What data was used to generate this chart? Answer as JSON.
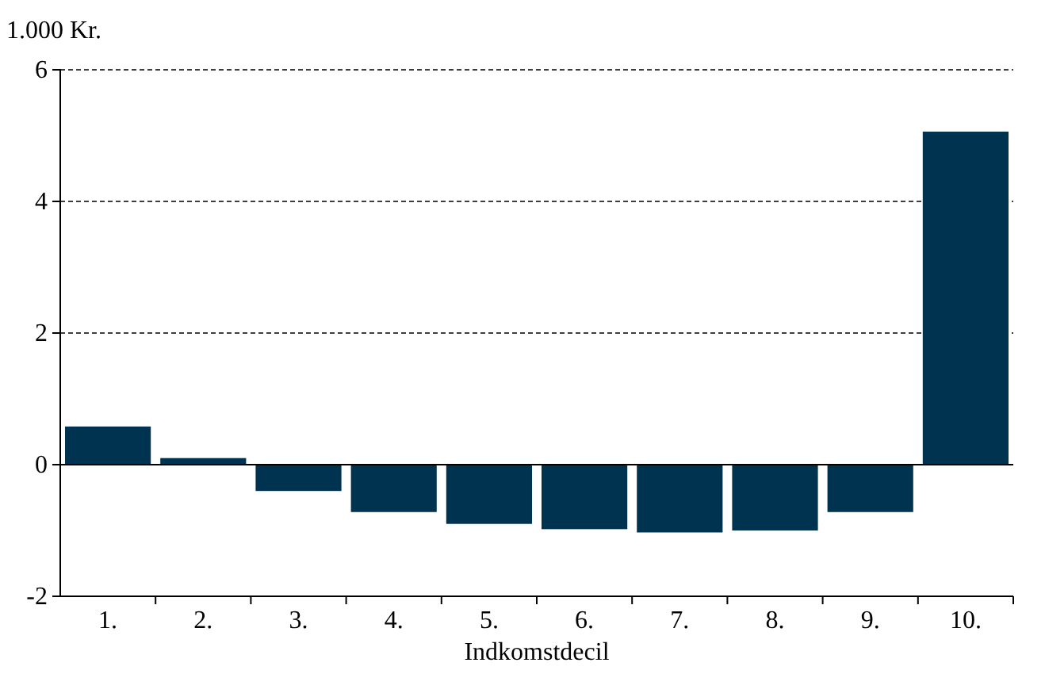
{
  "chart_data": {
    "type": "bar",
    "ylabel": "1.000 Kr.",
    "xlabel": "Indkomstdecil",
    "categories": [
      "1.",
      "2.",
      "3.",
      "4.",
      "5.",
      "6.",
      "7.",
      "8.",
      "9.",
      "10."
    ],
    "values": [
      0.58,
      0.1,
      -0.4,
      -0.72,
      -0.9,
      -0.98,
      -1.03,
      -1.0,
      -0.72,
      5.06
    ],
    "color": "#003350",
    "ylim": [
      -2,
      6
    ],
    "yticks": [
      -2,
      0,
      2,
      4,
      6
    ],
    "grid": "y"
  }
}
